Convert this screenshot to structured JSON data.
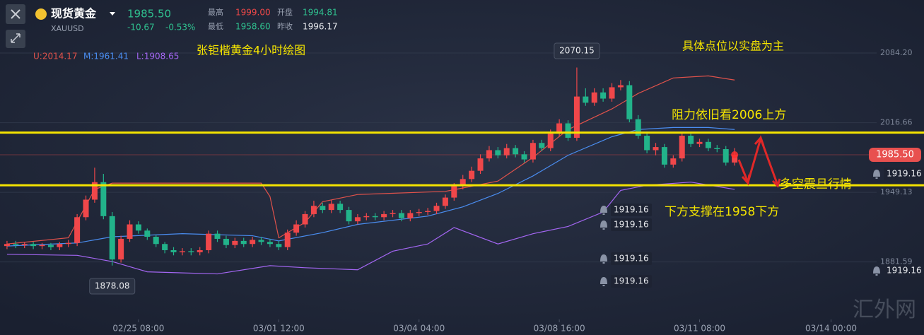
{
  "header": {
    "name": "现货黄金",
    "symbol": "XAUUSD",
    "price": "1985.50",
    "change": "-10.67",
    "change_pct": "-0.53%",
    "high_label": "最高",
    "high": "1999.00",
    "open_label": "开盘",
    "open": "1994.81",
    "low_label": "最低",
    "low": "1958.60",
    "prev_label": "昨收",
    "prev": "1996.17"
  },
  "chart_data": {
    "type": "candlestick",
    "up_color": "#f0474a",
    "down_color": "#22b38a",
    "open": [
      1897,
      1899,
      1898,
      1899,
      1897,
      1898,
      1896,
      1899,
      1900,
      1925,
      1942,
      1959,
      1926,
      1884,
      1904,
      1918,
      1912,
      1906,
      1899,
      1893,
      1891,
      1892,
      1891,
      1893,
      1909,
      1904,
      1898,
      1902,
      1899,
      1903,
      1901,
      1899,
      1896,
      1910,
      1918,
      1928,
      1936,
      1932,
      1938,
      1932,
      1921,
      1925,
      1926,
      1925,
      1928,
      1929,
      1924,
      1929,
      1930,
      1931,
      1936,
      1944,
      1955,
      1962,
      1970,
      1982,
      1990,
      1985,
      1992,
      1986,
      1981,
      1997,
      1992,
      2006,
      2016,
      2002,
      2042,
      2036,
      2046,
      2040,
      2051,
      2053,
      2020,
      2004,
      1990,
      1993,
      1976,
      1982,
      2004,
      1996,
      1998,
      1992,
      1991,
      1978
    ],
    "high": [
      1902,
      1902,
      1901,
      1901,
      1900,
      1900,
      1901,
      1903,
      1928,
      1946,
      1973,
      1967,
      1930,
      1907,
      1922,
      1921,
      1914,
      1908,
      1901,
      1896,
      1895,
      1895,
      1896,
      1912,
      1912,
      1907,
      1905,
      1905,
      1906,
      1906,
      1904,
      1902,
      1913,
      1922,
      1931,
      1941,
      1939,
      1942,
      1941,
      1935,
      1928,
      1929,
      1929,
      1931,
      1932,
      1932,
      1932,
      1933,
      1934,
      1939,
      1947,
      1958,
      1966,
      1974,
      1986,
      1994,
      1993,
      1996,
      1995,
      1989,
      2000,
      2000,
      2010,
      2020,
      2019,
      2070.15,
      2050,
      2050,
      2050,
      2055,
      2058,
      2057,
      2024,
      2008,
      1997,
      1996,
      1985,
      2007,
      2006,
      2001,
      2001,
      1995,
      1994,
      1992
    ],
    "low": [
      1894,
      1895,
      1895,
      1894,
      1894,
      1893,
      1893,
      1896,
      1897,
      1922,
      1939,
      1923,
      1878.08,
      1881,
      1901,
      1909,
      1903,
      1896,
      1890,
      1888,
      1888,
      1888,
      1888,
      1890,
      1901,
      1895,
      1895,
      1896,
      1896,
      1898,
      1896,
      1893,
      1893,
      1907,
      1915,
      1925,
      1929,
      1929,
      1929,
      1918,
      1918,
      1922,
      1922,
      1922,
      1925,
      1921,
      1921,
      1926,
      1927,
      1928,
      1933,
      1941,
      1952,
      1959,
      1967,
      1979,
      1982,
      1982,
      1983,
      1978,
      1978,
      1989,
      1989,
      2003,
      1999,
      1999,
      2033,
      2033,
      2037,
      2037,
      2048,
      2017,
      2001,
      1987,
      1985,
      1973,
      1973,
      1979,
      1993,
      1993,
      1989,
      1988,
      1975,
      1975
    ],
    "close": [
      1899,
      1898,
      1899,
      1897,
      1898,
      1896,
      1899,
      1900,
      1925,
      1942,
      1959,
      1926,
      1884,
      1904,
      1918,
      1912,
      1906,
      1899,
      1893,
      1891,
      1892,
      1891,
      1893,
      1909,
      1904,
      1898,
      1902,
      1899,
      1903,
      1901,
      1899,
      1896,
      1910,
      1918,
      1928,
      1936,
      1932,
      1938,
      1932,
      1921,
      1925,
      1926,
      1925,
      1928,
      1929,
      1924,
      1929,
      1930,
      1931,
      1936,
      1944,
      1955,
      1962,
      1970,
      1982,
      1990,
      1985,
      1992,
      1986,
      1981,
      1997,
      1992,
      2006,
      2016,
      2002,
      2042,
      2036,
      2046,
      2040,
      2051,
      2053,
      2020,
      2004,
      1990,
      1993,
      1976,
      1982,
      2004,
      1996,
      1998,
      1992,
      1991,
      1978,
      1985.5
    ],
    "bands": [
      {
        "label": "U:2014.17",
        "value": 2014.17,
        "color": "#e0524b",
        "x": [
          0,
          7,
          10,
          12,
          20,
          29,
          30,
          31,
          34,
          36,
          40,
          50,
          56,
          60,
          64,
          69,
          72,
          76,
          80,
          83
        ],
        "values": [
          1899,
          1905,
          1952,
          1958,
          1958,
          1958,
          1945,
          1905,
          1920,
          1940,
          1947,
          1950,
          1960,
          1983,
          2010,
          2030,
          2045,
          2060,
          2062,
          2058
        ]
      },
      {
        "label": "M:1961.41",
        "value": 1961.41,
        "color": "#4a8df0",
        "x": [
          0,
          8,
          12,
          20,
          28,
          31,
          36,
          40,
          48,
          52,
          56,
          60,
          64,
          69,
          72,
          76,
          80,
          83
        ],
        "values": [
          1897,
          1900,
          1906,
          1909,
          1907,
          1902,
          1910,
          1918,
          1926,
          1935,
          1948,
          1965,
          1985,
          2003,
          2010,
          2012,
          2012,
          2010
        ]
      },
      {
        "label": "L:1908.65",
        "value": 1908.65,
        "color": "#a366f2",
        "x": [
          0,
          8,
          12,
          16,
          24,
          30,
          34,
          40,
          44,
          48,
          51,
          56,
          60,
          64,
          68,
          70,
          73,
          78,
          83
        ],
        "values": [
          1889,
          1888,
          1882,
          1872,
          1870,
          1878,
          1876,
          1874,
          1892,
          1899,
          1915,
          1899,
          1909,
          1916,
          1930,
          1951,
          1956,
          1959,
          1952
        ]
      }
    ],
    "levels": [
      2007,
      1956
    ],
    "level_color": "#f5e400",
    "ylim": [
      1827.2,
      2108.2
    ],
    "yticks": [
      {
        "value": 2084.2,
        "label": "2084.20"
      },
      2016.66,
      1949.13,
      1881.59
    ],
    "xlim": [
      -0.8,
      99.2
    ],
    "xticks": [
      {
        "value": 15,
        "label": "02/25 08:00"
      },
      {
        "value": 31,
        "label": "03/01 12:00"
      },
      {
        "value": 47,
        "label": "03/04 04:00"
      },
      {
        "value": 63,
        "label": "03/08 16:00"
      },
      {
        "value": 79,
        "label": "03/11 08:00"
      },
      {
        "value": 94,
        "label": "03/14 00:00"
      }
    ],
    "grid": true,
    "annotations": [
      "张钜楷黄金4小时绘图",
      "具体点位以实盘为主",
      "阻力依旧看2006上方",
      "多空震旦行情",
      "下方支撑在1958下方"
    ],
    "alerts": [
      1919.16,
      1919.16,
      1919.16,
      1919.16,
      1919.16,
      1919.16
    ],
    "watermark": "汇外网"
  }
}
